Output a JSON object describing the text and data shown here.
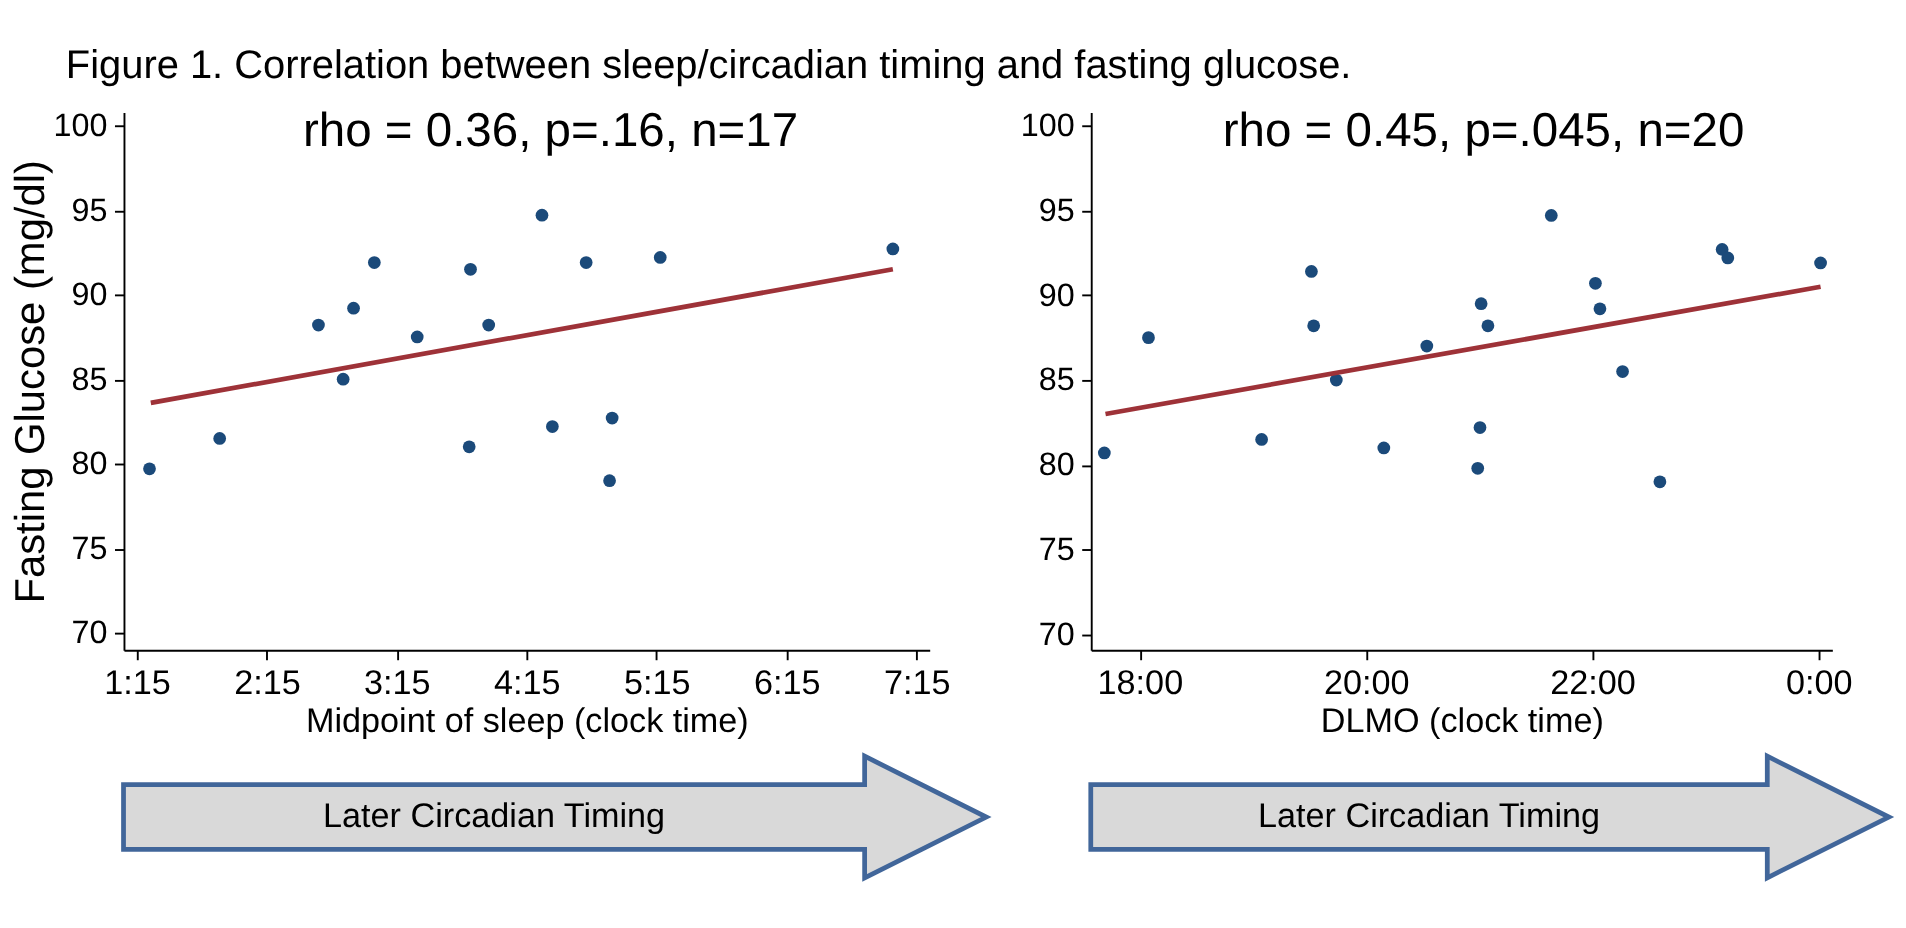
{
  "chart_data": [
    {
      "type": "scatter",
      "title": "Figure 1.  Correlation between sleep/circadian timing and fasting glucose.",
      "xlabel": "Midpoint of sleep (clock time)",
      "ylabel": "Fasting Glucose (mg/dl)",
      "annotations": [
        "rho =  0.36, p=.16, n=17",
        "Later Circadian Timing"
      ],
      "xlim": [
        1.15,
        7.35
      ],
      "xticks": [
        {
          "value": 1.25,
          "label": "1:15"
        },
        {
          "value": 2.25,
          "label": "2:15"
        },
        {
          "value": 3.25,
          "label": "3:15"
        },
        {
          "value": 4.25,
          "label": "4:15"
        },
        {
          "value": 5.25,
          "label": "5:15"
        },
        {
          "value": 6.25,
          "label": "6:15"
        },
        {
          "value": 7.25,
          "label": "7:15"
        }
      ],
      "ylim": [
        69,
        100.8
      ],
      "yticks": [
        70,
        75,
        80,
        85,
        90,
        95,
        100
      ],
      "grid": false,
      "series": [
        {
          "marker": "circle",
          "color": "#1b4a7a",
          "x": [
            1.35,
            1.89,
            2.65,
            2.84,
            2.92,
            3.08,
            3.41,
            3.81,
            3.82,
            3.96,
            4.37,
            4.45,
            4.71,
            4.89,
            4.91,
            5.28,
            7.07
          ],
          "values": [
            79.7,
            81.5,
            88.2,
            85.0,
            89.2,
            91.9,
            87.5,
            81.0,
            91.5,
            88.2,
            94.7,
            82.2,
            91.9,
            79.0,
            82.7,
            92.2,
            92.7
          ]
        },
        {
          "type": "line",
          "color": "#9e3238",
          "x": [
            1.36,
            7.07
          ],
          "values": [
            83.6,
            91.5
          ]
        }
      ]
    },
    {
      "type": "scatter",
      "xlabel": "DLMO (clock time)",
      "annotations": [
        "rho =  0.45, p=.045, n=20",
        "Later Circadian Timing"
      ],
      "xlim": [
        17.57,
        24.12
      ],
      "xticks": [
        {
          "value": 18,
          "label": "18:00"
        },
        {
          "value": 20,
          "label": "20:00"
        },
        {
          "value": 22,
          "label": "22:00"
        },
        {
          "value": 24,
          "label": "0:00"
        }
      ],
      "ylim": [
        69.1,
        100.8
      ],
      "yticks": [
        70,
        75,
        80,
        85,
        90,
        95,
        100
      ],
      "grid": false,
      "series": [
        {
          "marker": "circle",
          "color": "#1b4a7a",
          "x": [
            17.69,
            18.08,
            19.08,
            19.52,
            19.54,
            19.74,
            20.16,
            20.54,
            20.99,
            21.01,
            21.02,
            21.08,
            21.64,
            22.03,
            22.07,
            22.27,
            22.6,
            23.15,
            23.2,
            24.02
          ],
          "values": [
            80.7,
            87.5,
            81.5,
            91.4,
            88.2,
            85.0,
            81.0,
            87.0,
            79.8,
            82.2,
            89.5,
            88.2,
            94.7,
            90.7,
            89.2,
            85.5,
            79.0,
            92.7,
            92.2,
            91.9
          ]
        },
        {
          "type": "line",
          "color": "#9e3238",
          "x": [
            17.7,
            24.02
          ],
          "values": [
            83.0,
            90.5
          ]
        }
      ]
    }
  ]
}
